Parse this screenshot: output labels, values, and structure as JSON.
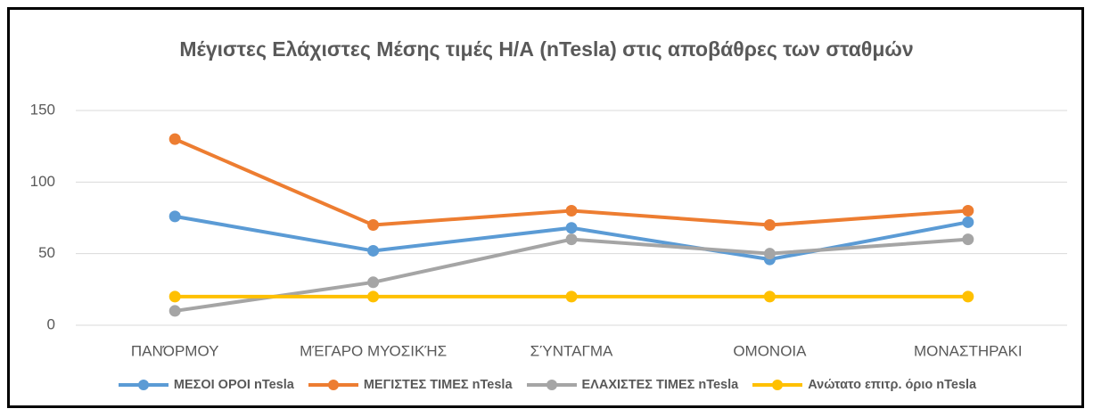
{
  "chart_data": {
    "type": "line",
    "title": "Μέγιστες  Ελάχιστες Μέσης τιμές Η/Α (nTesla)  στις αποβάθρες των σταθμών",
    "categories": [
      "ΠΑΝΌΡΜΟΥ",
      "ΜΈΓΑΡΟ ΜΥΟΣΙΚΉΣ",
      "ΣΎΝΤΑΓΜΑ",
      "ΟΜΟΝΟΙΑ",
      "ΜΟΝΑΣΤΗΡΑΚΙ"
    ],
    "series": [
      {
        "name": "ΜΕΣΟΙ ΟΡΟΙ nTesla",
        "color": "#5b9bd5",
        "values": [
          76,
          52,
          68,
          46,
          72
        ]
      },
      {
        "name": "ΜΕΓΙΣΤΕΣ ΤΙΜΕΣ nTesla",
        "color": "#ed7d31",
        "values": [
          130,
          70,
          80,
          70,
          80
        ]
      },
      {
        "name": "ΕΛΑΧΙΣΤΕΣ ΤΙΜΕΣ nTesla",
        "color": "#a5a5a5",
        "values": [
          10,
          30,
          60,
          50,
          60
        ]
      },
      {
        "name": "Ανώτατο επιτρ. όριο nTesla",
        "color": "#ffc000",
        "values": [
          20,
          20,
          20,
          20,
          20
        ]
      }
    ],
    "ylim": [
      0,
      150
    ],
    "yticks": [
      0,
      50,
      100,
      150
    ],
    "grid": true,
    "legend": "bottom"
  }
}
